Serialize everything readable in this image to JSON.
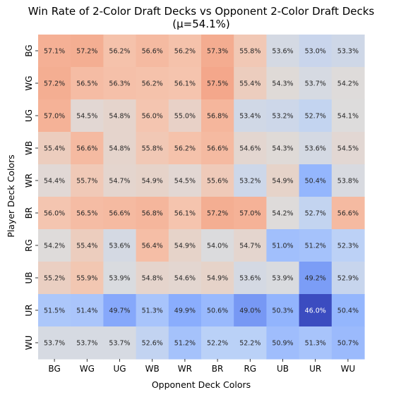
{
  "chart_data": {
    "type": "heatmap",
    "title": "Win Rate of 2-Color Draft Decks vs Opponent 2-Color Draft Decks",
    "subtitle": "(μ=54.1%)",
    "xlabel": "Opponent Deck Colors",
    "ylabel": "Player Deck Colors",
    "x_categories": [
      "BG",
      "WG",
      "UG",
      "WB",
      "WR",
      "BR",
      "RG",
      "UB",
      "UR",
      "WU"
    ],
    "y_categories": [
      "BG",
      "WG",
      "UG",
      "WB",
      "WR",
      "BR",
      "RG",
      "UB",
      "UR",
      "WU"
    ],
    "center": 54.1,
    "colormap": "coolwarm",
    "colorbar": false,
    "values": [
      [
        57.1,
        57.2,
        56.2,
        56.6,
        56.2,
        57.3,
        55.8,
        53.6,
        53.0,
        53.3
      ],
      [
        57.2,
        56.5,
        56.3,
        56.2,
        56.1,
        57.5,
        55.4,
        54.3,
        53.7,
        54.2
      ],
      [
        57.0,
        54.5,
        54.8,
        56.0,
        55.0,
        56.8,
        53.4,
        53.2,
        52.7,
        54.1
      ],
      [
        55.4,
        56.6,
        54.8,
        55.8,
        56.2,
        56.6,
        54.6,
        54.3,
        53.6,
        54.5
      ],
      [
        54.4,
        55.7,
        54.7,
        54.9,
        54.5,
        55.6,
        53.2,
        54.9,
        50.4,
        53.8
      ],
      [
        56.0,
        56.5,
        56.6,
        56.8,
        56.1,
        57.2,
        57.0,
        54.2,
        52.7,
        56.6
      ],
      [
        54.2,
        55.4,
        53.6,
        56.4,
        54.9,
        54.0,
        54.7,
        51.0,
        51.2,
        52.3
      ],
      [
        55.2,
        55.9,
        53.9,
        54.8,
        54.6,
        54.9,
        53.6,
        53.9,
        49.2,
        52.9
      ],
      [
        51.5,
        51.4,
        49.7,
        51.3,
        49.9,
        50.6,
        49.0,
        50.3,
        46.0,
        50.4
      ],
      [
        53.7,
        53.7,
        53.7,
        52.6,
        51.2,
        52.2,
        52.2,
        50.9,
        51.3,
        50.7
      ]
    ],
    "value_format": "{v}%"
  }
}
